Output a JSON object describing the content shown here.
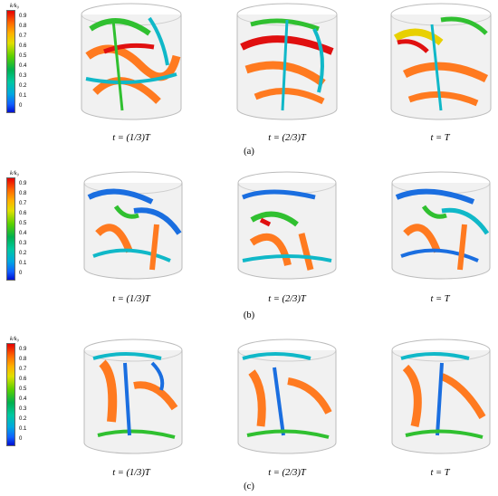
{
  "colorbar": {
    "title": "k/k₀",
    "ticks": [
      "0.9",
      "0.8",
      "0.7",
      "0.6",
      "0.5",
      "0.4",
      "0.3",
      "0.2",
      "0.1",
      "0"
    ]
  },
  "panels": [
    {
      "id": "a",
      "label": "(a)",
      "times": [
        "t = (1/3)T",
        "t = (2/3)T",
        "t = T"
      ]
    },
    {
      "id": "b",
      "label": "(b)",
      "times": [
        "t = (1/3)T",
        "t = (2/3)T",
        "t = T"
      ]
    },
    {
      "id": "c",
      "label": "(c)",
      "times": [
        "t = (1/3)T",
        "t = (2/3)T",
        "t = T"
      ]
    }
  ],
  "colors": {
    "red": "#e01010",
    "orange": "#ff7a20",
    "yellow": "#e8d000",
    "green": "#30c030",
    "cyan": "#10b8c8",
    "blue": "#1a6ee0"
  }
}
